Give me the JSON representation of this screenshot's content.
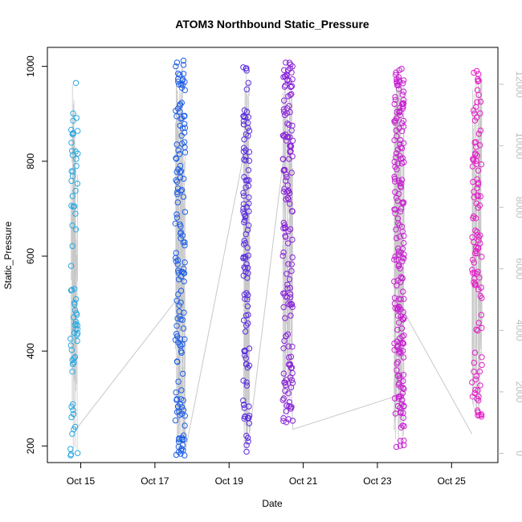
{
  "chart_data": {
    "type": "scatter",
    "title": "ATOM3 Northbound Static_Pressure",
    "xlabel": "Date",
    "ylabel": "Static_Pressure",
    "x_ticks": [
      "Oct 15",
      "Oct 17",
      "Oct 19",
      "Oct 21",
      "Oct 23",
      "Oct 25"
    ],
    "x_tick_days": [
      15,
      17,
      19,
      21,
      23,
      25
    ],
    "x_range_days": [
      14.1,
      26.25
    ],
    "y_ticks": [
      200,
      400,
      600,
      800,
      1000
    ],
    "ylim": [
      165,
      1040
    ],
    "y2_ticks": [
      0,
      2000,
      4000,
      6000,
      8000,
      10000,
      12000
    ],
    "y2lim": [
      -300,
      13200
    ],
    "y2_color": "#bdbdbd",
    "point_style": "open-circle",
    "grid": false,
    "legend": "none",
    "series": [
      {
        "color": "#29a8e0",
        "day_range": [
          14.72,
          14.92
        ],
        "y_range": [
          180,
          965
        ],
        "count": 70
      },
      {
        "color": "#1f5fe6",
        "day_range": [
          17.55,
          17.82
        ],
        "y_range": [
          180,
          1012
        ],
        "count": 150
      },
      {
        "color": "#5a2de0",
        "day_range": [
          19.38,
          19.55
        ],
        "y_range": [
          188,
          998
        ],
        "count": 110
      },
      {
        "color": "#8a24d8",
        "day_range": [
          20.45,
          20.72
        ],
        "y_range": [
          250,
          1008
        ],
        "count": 150
      },
      {
        "color": "#c81ed2",
        "day_range": [
          23.45,
          23.72
        ],
        "y_range": [
          198,
          995
        ],
        "count": 190
      },
      {
        "color": "#e51ec8",
        "day_range": [
          25.55,
          25.82
        ],
        "y_range": [
          262,
          990
        ],
        "count": 110
      }
    ],
    "trace_points": [
      {
        "day": 14.9,
        "y": 238
      },
      {
        "day": 17.55,
        "y": 505
      },
      {
        "day": 17.82,
        "y": 190
      },
      {
        "day": 19.45,
        "y": 835
      },
      {
        "day": 19.55,
        "y": 225
      },
      {
        "day": 20.45,
        "y": 795
      },
      {
        "day": 20.72,
        "y": 235
      },
      {
        "day": 23.5,
        "y": 305
      },
      {
        "day": 23.7,
        "y": 485
      },
      {
        "day": 25.55,
        "y": 225
      }
    ]
  }
}
